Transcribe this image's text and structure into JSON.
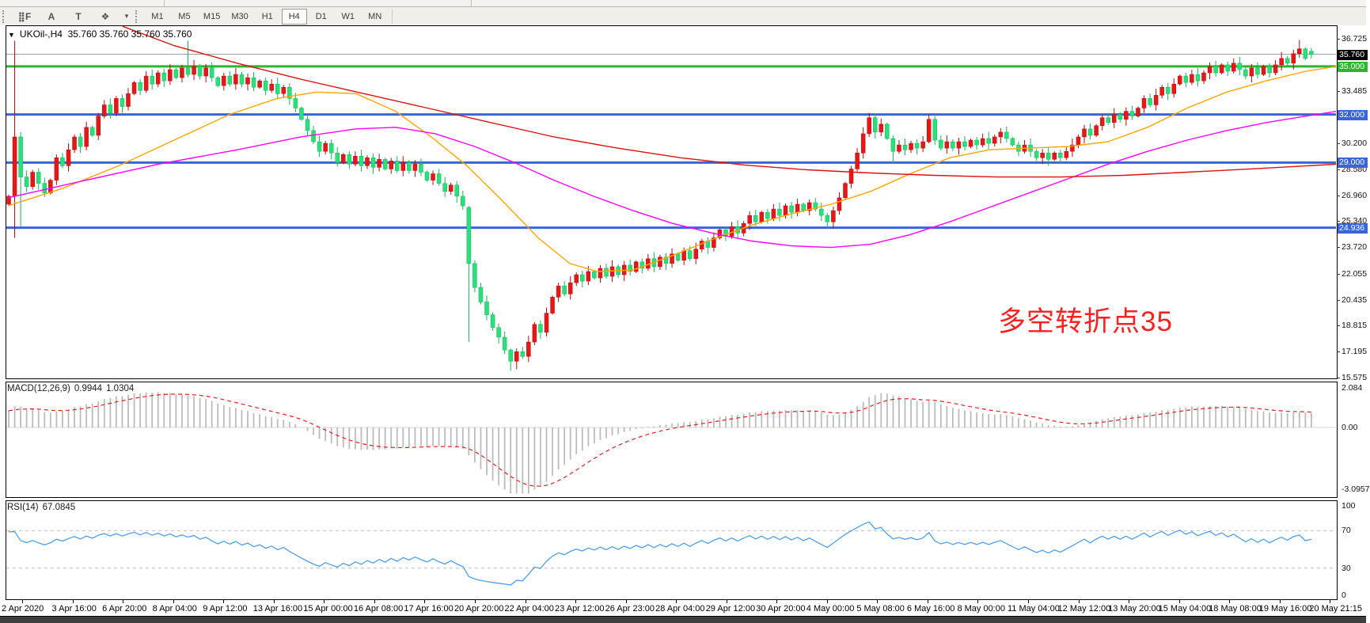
{
  "ui": {
    "toolbar": {
      "icon_buttons": [
        {
          "name": "indicator-grid-icon",
          "glyph": "⣿F"
        },
        {
          "name": "text-label-icon",
          "glyph": "A"
        },
        {
          "name": "text-box-icon",
          "glyph": "T"
        },
        {
          "name": "draw-objects-icon",
          "glyph": "❖"
        }
      ],
      "objects_dropdown_caret": "▼",
      "timeframes": [
        "M1",
        "M5",
        "M15",
        "M30",
        "H1",
        "H4",
        "D1",
        "W1",
        "MN"
      ],
      "active_timeframe": "H4"
    },
    "chart_header": {
      "dropdown_glyph": "▼",
      "symbol_period": "UKOil-,H4",
      "ohlc": "35.760 35.760 35.760 35.760"
    },
    "annotation": {
      "text": "多空转折点35",
      "color": "#fb2121"
    },
    "macd_label": {
      "name": "MACD(12,26,9)",
      "value_main": "0.9944",
      "value_signal": "1.0304"
    },
    "rsi_label": {
      "name": "RSI(14)",
      "value": "67.0845"
    },
    "price_boxes": {
      "current": "35.760",
      "green": "35.000",
      "blue": [
        "32.000",
        "29.000",
        "24.936"
      ]
    },
    "colors": {
      "bull": "#e81717",
      "bull_edge": "#b30d0d",
      "bear": "#2be07a",
      "bear_edge": "#12b65c",
      "blue_line": "#3a64d8",
      "green_line": "#2db52d",
      "current_line": "#9aa0a6",
      "ma_fast": "#ffa500",
      "ma_mid": "#ff00ff",
      "ma_slow": "#dd1111",
      "macd_hist": "#bcbcbc",
      "macd_signal": "#dd2020",
      "rsi_line": "#4f9fe8",
      "rsi_levels": "#bdbdbd",
      "label_box_current": "#000000",
      "label_box_green": "#2db52d",
      "label_box_blue": "#3a64d8"
    }
  },
  "chart_data": {
    "type": "candlestick",
    "symbol": "UKOil",
    "timeframe": "H4",
    "title": "UKOil-,H4  35.760 35.760 35.760 35.760",
    "price_axis_ticks": [
      36.725,
      33.485,
      30.2,
      28.58,
      26.96,
      25.34,
      23.72,
      22.055,
      20.435,
      18.815,
      17.195,
      15.575
    ],
    "price_axis_range": [
      15.575,
      36.725
    ],
    "horizontal_levels": [
      {
        "price": 35.76,
        "style": "current"
      },
      {
        "price": 35.0,
        "style": "green"
      },
      {
        "price": 32.0,
        "style": "blue"
      },
      {
        "price": 29.0,
        "style": "blue"
      },
      {
        "price": 24.936,
        "style": "blue"
      }
    ],
    "time_labels": [
      "2 Apr 2020",
      "3 Apr 16:00",
      "6 Apr 20:00",
      "8 Apr 04:00",
      "9 Apr 12:00",
      "13 Apr 16:00",
      "15 Apr 00:00",
      "16 Apr 08:00",
      "17 Apr 16:00",
      "20 Apr 20:00",
      "22 Apr 04:00",
      "23 Apr 12:00",
      "26 Apr 23:00",
      "28 Apr 04:00",
      "29 Apr 12:00",
      "30 Apr 20:00",
      "4 May 00:00",
      "5 May 08:00",
      "6 May 16:00",
      "8 May 00:00",
      "11 May 04:00",
      "12 May 12:00",
      "13 May 20:00",
      "15 May 04:00",
      "18 May 08:00",
      "19 May 16:00",
      "20 May 21:15"
    ],
    "candles": {
      "first_open": 26.4,
      "closes": [
        26.9,
        30.6,
        28.1,
        27.5,
        28.4,
        27.7,
        27.1,
        27.9,
        29.3,
        28.8,
        29.8,
        30.6,
        30.0,
        31.2,
        30.7,
        31.9,
        32.6,
        32.1,
        33.0,
        32.5,
        33.3,
        34.0,
        33.5,
        34.4,
        33.9,
        34.6,
        34.1,
        34.8,
        34.3,
        34.9,
        34.5,
        35.0,
        34.4,
        34.9,
        34.3,
        33.8,
        34.4,
        33.9,
        34.5,
        33.9,
        34.3,
        33.7,
        34.1,
        33.5,
        33.9,
        33.3,
        33.7,
        33.0,
        32.4,
        31.7,
        31.0,
        30.3,
        29.7,
        30.2,
        29.6,
        29.0,
        29.5,
        28.9,
        29.4,
        28.8,
        29.3,
        28.7,
        29.2,
        28.6,
        29.1,
        28.5,
        29.0,
        28.5,
        28.9,
        28.4,
        27.9,
        28.3,
        27.7,
        27.2,
        27.6,
        26.9,
        26.3,
        22.7,
        21.2,
        20.3,
        19.5,
        18.7,
        18.1,
        17.3,
        16.6,
        17.2,
        16.9,
        17.8,
        18.9,
        18.4,
        19.6,
        20.6,
        21.3,
        20.8,
        21.5,
        22.0,
        21.6,
        22.2,
        21.8,
        22.4,
        21.9,
        22.5,
        22.0,
        22.6,
        22.2,
        22.8,
        22.4,
        23.0,
        22.5,
        23.1,
        22.7,
        23.3,
        22.9,
        23.5,
        23.0,
        23.6,
        24.1,
        23.7,
        24.3,
        24.8,
        24.4,
        25.0,
        24.6,
        25.2,
        25.7,
        25.3,
        25.9,
        25.5,
        26.1,
        25.7,
        26.3,
        25.9,
        26.4,
        26.0,
        26.5,
        26.1,
        25.7,
        25.3,
        26.0,
        26.8,
        27.7,
        28.6,
        29.6,
        30.8,
        31.8,
        30.9,
        31.4,
        30.5,
        29.7,
        30.1,
        29.8,
        30.2,
        29.9,
        30.3,
        31.7,
        30.4,
        29.9,
        30.3,
        29.9,
        30.3,
        30.0,
        30.4,
        30.1,
        30.5,
        30.2,
        30.6,
        30.9,
        30.5,
        30.1,
        29.7,
        30.1,
        29.7,
        29.3,
        29.6,
        29.2,
        29.6,
        29.3,
        29.7,
        30.1,
        30.6,
        31.1,
        30.7,
        31.3,
        31.8,
        31.5,
        32.0,
        31.7,
        32.2,
        31.9,
        32.4,
        33.0,
        32.6,
        33.2,
        33.7,
        33.3,
        33.9,
        34.4,
        34.0,
        34.5,
        34.1,
        34.6,
        35.0,
        34.6,
        35.1,
        34.7,
        35.2,
        34.8,
        34.4,
        34.9,
        34.5,
        35.0,
        34.6,
        35.1,
        35.5,
        35.2,
        35.8,
        36.1,
        35.5,
        35.76
      ],
      "overrides": {
        "1": {
          "h": 36.6,
          "l": 24.3
        },
        "2": {
          "l": 25.0
        },
        "30": {
          "h": 36.6
        },
        "77": {
          "o": 26.2,
          "l": 17.8
        },
        "84": {
          "l": 16.0
        },
        "85": {
          "l": 16.1
        },
        "137": {
          "l": 24.9
        },
        "144": {
          "h": 32.1
        },
        "148": {
          "l": 28.95
        },
        "154": {
          "h": 32.0
        },
        "174": {
          "l": 28.8
        },
        "216": {
          "h": 36.65
        },
        "218": {
          "o": 35.95,
          "l": 35.5
        }
      }
    },
    "moving_averages": {
      "fast_ema": [
        [
          10,
          26.3
        ],
        [
          80,
          27.4
        ],
        [
          150,
          28.8
        ],
        [
          220,
          30.4
        ],
        [
          290,
          32.0
        ],
        [
          350,
          33.0
        ],
        [
          400,
          33.4
        ],
        [
          450,
          33.3
        ],
        [
          500,
          32.2
        ],
        [
          545,
          30.6
        ],
        [
          590,
          28.8
        ],
        [
          635,
          26.6
        ],
        [
          680,
          24.3
        ],
        [
          720,
          22.7
        ],
        [
          755,
          22.2
        ],
        [
          800,
          22.3
        ],
        [
          850,
          23.2
        ],
        [
          900,
          24.2
        ],
        [
          950,
          25.1
        ],
        [
          1000,
          25.8
        ],
        [
          1050,
          26.4
        ],
        [
          1100,
          27.2
        ],
        [
          1150,
          28.3
        ],
        [
          1200,
          29.3
        ],
        [
          1250,
          29.8
        ],
        [
          1300,
          29.9
        ],
        [
          1350,
          30.0
        ],
        [
          1400,
          30.3
        ],
        [
          1450,
          31.2
        ],
        [
          1500,
          32.4
        ],
        [
          1550,
          33.4
        ],
        [
          1600,
          34.1
        ],
        [
          1650,
          34.7
        ],
        [
          1689,
          35.0
        ]
      ],
      "mid_ema": [
        [
          10,
          26.8
        ],
        [
          100,
          27.8
        ],
        [
          200,
          28.9
        ],
        [
          300,
          29.8
        ],
        [
          380,
          30.6
        ],
        [
          450,
          31.1
        ],
        [
          500,
          31.2
        ],
        [
          550,
          30.8
        ],
        [
          600,
          30.0
        ],
        [
          650,
          29.0
        ],
        [
          700,
          27.9
        ],
        [
          750,
          26.9
        ],
        [
          800,
          26.0
        ],
        [
          850,
          25.2
        ],
        [
          900,
          24.6
        ],
        [
          950,
          24.1
        ],
        [
          1000,
          23.8
        ],
        [
          1050,
          23.7
        ],
        [
          1100,
          23.9
        ],
        [
          1150,
          24.5
        ],
        [
          1200,
          25.3
        ],
        [
          1250,
          26.2
        ],
        [
          1300,
          27.1
        ],
        [
          1350,
          28.0
        ],
        [
          1400,
          28.9
        ],
        [
          1450,
          29.7
        ],
        [
          1500,
          30.4
        ],
        [
          1550,
          31.0
        ],
        [
          1600,
          31.5
        ],
        [
          1650,
          31.9
        ],
        [
          1689,
          32.2
        ]
      ],
      "slow_ema": [
        [
          155,
          37.5
        ],
        [
          220,
          36.3
        ],
        [
          300,
          35.2
        ],
        [
          380,
          34.2
        ],
        [
          460,
          33.3
        ],
        [
          540,
          32.4
        ],
        [
          620,
          31.5
        ],
        [
          700,
          30.6
        ],
        [
          780,
          29.9
        ],
        [
          860,
          29.3
        ],
        [
          940,
          28.85
        ],
        [
          1020,
          28.55
        ],
        [
          1100,
          28.35
        ],
        [
          1180,
          28.2
        ],
        [
          1260,
          28.1
        ],
        [
          1340,
          28.1
        ],
        [
          1420,
          28.2
        ],
        [
          1500,
          28.4
        ],
        [
          1580,
          28.6
        ],
        [
          1689,
          28.9
        ]
      ]
    },
    "macd": {
      "params": [
        12,
        26,
        9
      ],
      "current": 0.9944,
      "signal_current": 1.0304,
      "axis": {
        "max": 2.084,
        "zero": 0.0,
        "min": -3.0957
      }
    },
    "rsi": {
      "period": 14,
      "current": 67.0845,
      "levels": [
        70,
        30
      ],
      "axis": {
        "max": 100,
        "min": 0
      }
    }
  }
}
